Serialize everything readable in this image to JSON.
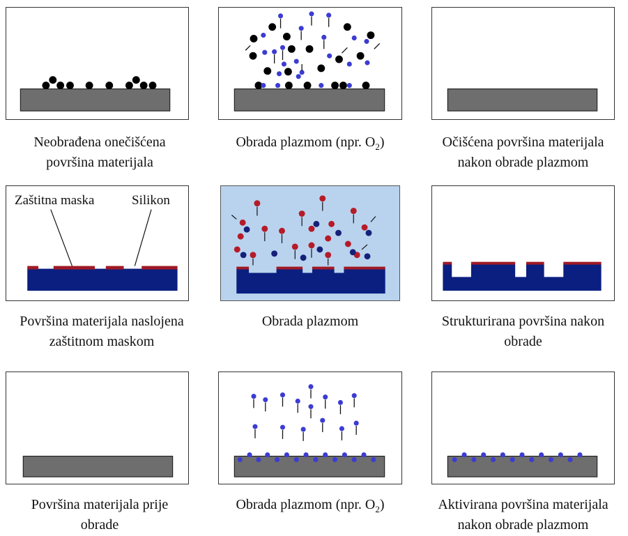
{
  "rows": [
    {
      "captions": [
        {
          "line1": "Neobrađena onečišćena",
          "line2": "površina materijala"
        },
        {
          "line1": "Obrada plazmom (npr. O",
          "sub": "2",
          "line1_end": ")"
        },
        {
          "line1": "Očišćena površina materijala",
          "line2": "nakon obrade plazmom"
        }
      ]
    },
    {
      "captions": [
        {
          "line1": "Površina materijala naslojena",
          "line2": "zaštitnom maskom"
        },
        {
          "line1": "Obrada plazmom"
        },
        {
          "line1": "Strukturirana površina nakon",
          "line2": "obrade"
        }
      ],
      "labels": {
        "mask": "Zaštitna maska",
        "silicon": "Silikon"
      }
    },
    {
      "captions": [
        {
          "line1": "Površina materijala prije",
          "line2": "obrade"
        },
        {
          "line1": "Obrada plazmom (npr. O",
          "sub": "2",
          "line1_end": ")"
        },
        {
          "line1": "Aktivirana površina materijala",
          "line2": "nakon obrade plazmom"
        }
      ]
    }
  ],
  "colors": {
    "substrate_gray": "#6e6e6e",
    "contaminant_black": "#000000",
    "oxygen_blue": "#3c3cd2",
    "silicon_navy": "#0a1f80",
    "mask_red": "#a01a24",
    "plasma_bg": "#b9d3ee"
  }
}
